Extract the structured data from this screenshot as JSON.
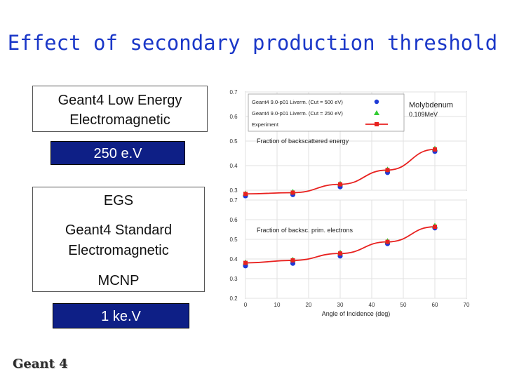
{
  "slide_title": "Effect of secondary production threshold",
  "box_top_text": [
    "Geant4 Low Energy",
    "Electromagnetic"
  ],
  "badge_top": "250 e.V",
  "box_bottom_items": [
    "EGS",
    "Geant4 Standard",
    "Electromagnetic",
    "MCNP"
  ],
  "badge_bottom": "1 ke.V",
  "logo_text": "Geant 4",
  "colors": {
    "title": "#1a37c8",
    "badge_bg": "#0e1f86",
    "cut500": "#1f3bd6",
    "cut250": "#33cc33",
    "experiment": "#e8211f"
  },
  "chart_data": [
    {
      "type": "scatter",
      "annotation": "Fraction of backscattered energy",
      "material_label": "Molybdenum",
      "energy_label": "0.109MeV",
      "xlabel": "",
      "xlim": [
        0,
        70
      ],
      "ylim": [
        0.3,
        0.7
      ],
      "yticks": [
        "0.3",
        "0.4",
        "0.5",
        "0.6",
        "0.7"
      ],
      "series": [
        {
          "name": "Geant4 9.0-p01 Liverm. (Cut = 500 eV)",
          "marker": "circle",
          "color": "#1f3bd6",
          "x": [
            0,
            15,
            30,
            45,
            60
          ],
          "y": [
            0.277,
            0.282,
            0.314,
            0.372,
            0.458
          ]
        },
        {
          "name": "Geant4 9.0-p01 Liverm. (Cut = 250 eV)",
          "marker": "triangle",
          "color": "#33cc33",
          "x": [
            0,
            15,
            30,
            45,
            60
          ],
          "y": [
            0.287,
            0.294,
            0.327,
            0.385,
            0.47
          ]
        },
        {
          "name": "Experiment",
          "marker": "square-line",
          "color": "#e8211f",
          "x": [
            0,
            15,
            30,
            45,
            60
          ],
          "y": [
            0.285,
            0.29,
            0.324,
            0.382,
            0.466
          ]
        }
      ]
    },
    {
      "type": "scatter",
      "annotation": "Fraction of backsc. prim. electrons",
      "xlabel": "Angle of Incidence (deg)",
      "xlim": [
        0,
        70
      ],
      "ylim": [
        0.2,
        0.7
      ],
      "xticks": [
        "0",
        "10",
        "20",
        "30",
        "40",
        "50",
        "60",
        "70"
      ],
      "yticks": [
        "0.2",
        "0.3",
        "0.4",
        "0.5",
        "0.6",
        "0.7"
      ],
      "series": [
        {
          "name": "Geant4 9.0-p01 Liverm. (Cut = 500 eV)",
          "marker": "circle",
          "color": "#1f3bd6",
          "x": [
            0,
            15,
            30,
            45,
            60
          ],
          "y": [
            0.365,
            0.378,
            0.415,
            0.478,
            0.558
          ]
        },
        {
          "name": "Geant4 9.0-p01 Liverm. (Cut = 250 eV)",
          "marker": "triangle",
          "color": "#33cc33",
          "x": [
            0,
            15,
            30,
            45,
            60
          ],
          "y": [
            0.383,
            0.397,
            0.433,
            0.492,
            0.57
          ]
        },
        {
          "name": "Experiment",
          "marker": "square-line",
          "color": "#e8211f",
          "x": [
            0,
            15,
            30,
            45,
            60
          ],
          "y": [
            0.38,
            0.393,
            0.428,
            0.487,
            0.564
          ]
        }
      ]
    }
  ]
}
